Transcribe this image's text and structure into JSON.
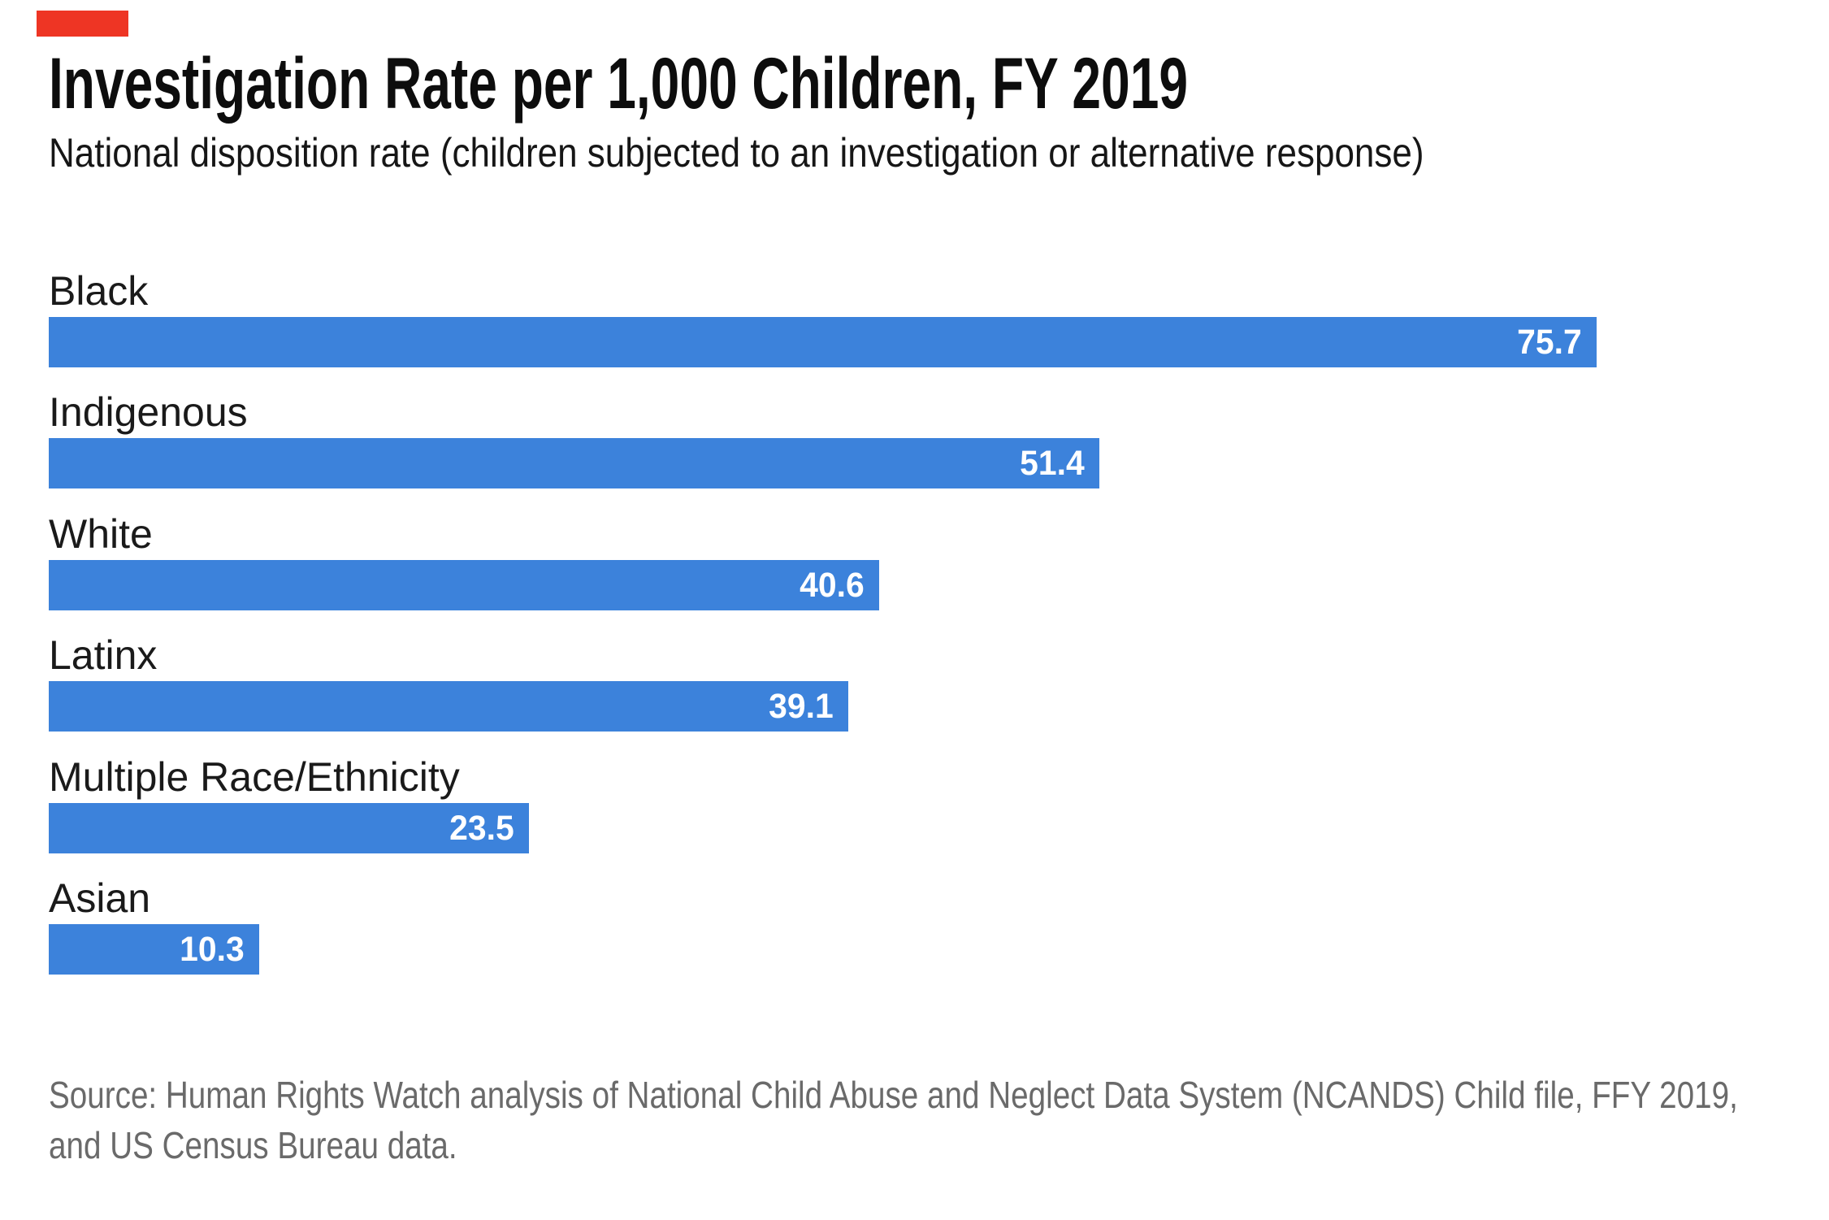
{
  "brand": {
    "mark_color": "#ee3524"
  },
  "chart": {
    "title": "Investigation Rate per 1,000 Children, FY 2019",
    "subtitle": "National disposition rate (children subjected to an investigation or alternative response)",
    "bar_color": "#3c82db",
    "value_text_color": "#ffffff",
    "source_line1": "Source: Human Rights Watch analysis of National Child Abuse and Neglect Data System (NCANDS) Child file, FFY 2019,",
    "source_line2": "and US Census Bureau data."
  },
  "chart_data": {
    "type": "bar",
    "orientation": "horizontal",
    "title": "Investigation Rate per 1,000 Children, FY 2019",
    "subtitle": "National disposition rate (children subjected to an investigation or alternative response)",
    "categories": [
      "Black",
      "Indigenous",
      "White",
      "Latinx",
      "Multiple Race/Ethnicity",
      "Asian"
    ],
    "values": [
      75.7,
      51.4,
      40.6,
      39.1,
      23.5,
      10.3
    ],
    "value_labels": [
      "75.7",
      "51.4",
      "40.6",
      "39.1",
      "23.5",
      "10.3"
    ],
    "xlabel": "",
    "ylabel": "",
    "xlim": [
      0,
      87
    ],
    "grid": false,
    "legend": "none",
    "value_label_position": "inside-end",
    "source": "Source: Human Rights Watch analysis of National Child Abuse and Neglect Data System (NCANDS) Child file, FFY 2019, and US Census Bureau data."
  }
}
